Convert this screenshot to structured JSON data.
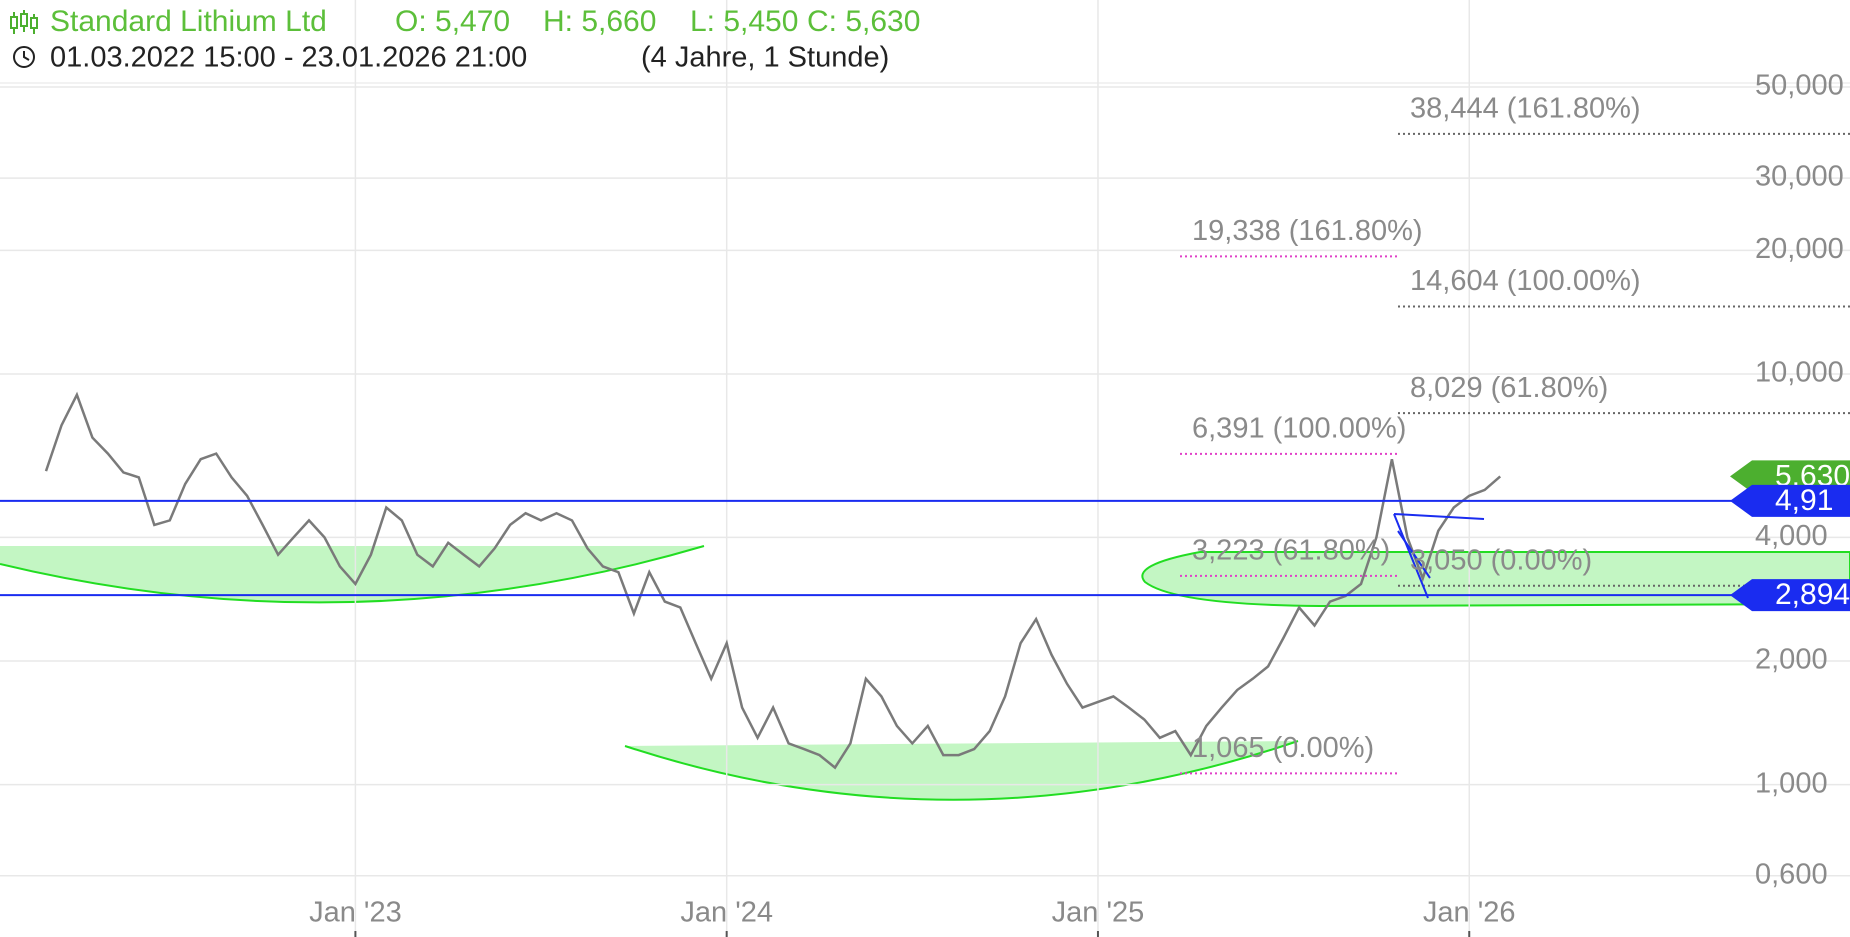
{
  "chart_data": {
    "type": "line",
    "title": "Standard Lithium Ltd",
    "ohlc_labels": [
      "O: 5,470",
      "H: 5,660",
      "L: 5,450",
      "C: 5,630"
    ],
    "date_range": "01.03.2022 15:00 - 23.01.2026 21:00",
    "period": "(4 Jahre, 1 Stunde)",
    "log_scale": true,
    "grid": true,
    "color": "#7a7a7a",
    "categories": [
      null,
      null,
      null,
      null,
      null,
      null,
      null,
      null,
      null,
      null,
      null,
      null,
      null,
      null,
      null,
      null,
      null,
      null,
      null,
      null,
      "Jan '23",
      null,
      null,
      null,
      null,
      null,
      null,
      null,
      null,
      null,
      null,
      null,
      null,
      null,
      null,
      null,
      null,
      null,
      null,
      null,
      null,
      null,
      null,
      null,
      "Jan '24",
      null,
      null,
      null,
      null,
      null,
      null,
      null,
      null,
      null,
      null,
      null,
      null,
      null,
      null,
      null,
      null,
      null,
      null,
      null,
      null,
      null,
      null,
      null,
      "Jan '25",
      null,
      null,
      null,
      null,
      null,
      null,
      null,
      null,
      null,
      null,
      null,
      null,
      null,
      null,
      null,
      null,
      null,
      null,
      null,
      null,
      null,
      null,
      null,
      "Jan '26",
      null,
      null
    ],
    "values": [
      5.8,
      7.5,
      8.9,
      7.0,
      6.4,
      5.76,
      5.6,
      4.29,
      4.4,
      5.4,
      6.2,
      6.4,
      5.6,
      5.05,
      4.29,
      3.63,
      4.0,
      4.4,
      4.0,
      3.4,
      3.08,
      3.63,
      4.73,
      4.4,
      3.63,
      3.4,
      3.88,
      3.63,
      3.4,
      3.76,
      4.29,
      4.58,
      4.4,
      4.58,
      4.4,
      3.76,
      3.4,
      3.29,
      2.61,
      3.29,
      2.79,
      2.7,
      2.21,
      1.81,
      2.21,
      1.54,
      1.3,
      1.54,
      1.26,
      1.22,
      1.18,
      1.1,
      1.26,
      1.81,
      1.64,
      1.39,
      1.26,
      1.39,
      1.18,
      1.18,
      1.22,
      1.35,
      1.64,
      2.21,
      2.53,
      2.07,
      1.76,
      1.54,
      1.59,
      1.64,
      1.54,
      1.44,
      1.3,
      1.35,
      1.18,
      1.39,
      1.54,
      1.7,
      1.81,
      1.94,
      2.28,
      2.7,
      2.44,
      2.79,
      2.88,
      3.08,
      4.0,
      6.2,
      4.0,
      3.18,
      4.15,
      4.73,
      5.05,
      5.22,
      5.63
    ],
    "ylim": [
      0.44,
      52
    ],
    "yticks": [
      {
        "value": 0.6,
        "label": "0,600"
      },
      {
        "value": 1,
        "label": "1,000"
      },
      {
        "value": 2,
        "label": "2,000"
      },
      {
        "value": 4,
        "label": "4,000"
      },
      {
        "value": 10,
        "label": "10,000"
      },
      {
        "value": 20,
        "label": "20,000"
      },
      {
        "value": 30,
        "label": "30,000"
      },
      {
        "value": 50,
        "label": "50,000"
      }
    ],
    "fib_left": [
      {
        "value": 19.338,
        "label": "19,338 (161.80%)"
      },
      {
        "value": 6.391,
        "label": "6,391 (100.00%)"
      },
      {
        "value": 3.223,
        "label": "3,223 (61.80%)"
      },
      {
        "value": 1.065,
        "label": "1,065 (0.00%)"
      }
    ],
    "fib_left_color": "#e040c8",
    "fib_right": [
      {
        "value": 38.444,
        "label": "38,444 (161.80%)"
      },
      {
        "value": 14.604,
        "label": "14,604 (100.00%)"
      },
      {
        "value": 8.029,
        "label": "8,029 (61.80%)"
      },
      {
        "value": 3.05,
        "label": "3,050 (0.00%)"
      }
    ],
    "fib_right_color": "#666666",
    "price_labels": [
      {
        "value": 5.63,
        "label": "5,630",
        "color": "#4caf2f",
        "line": false
      },
      {
        "value": 4.91,
        "label": "4,91",
        "color": "#1a2cf0",
        "line": true
      },
      {
        "value": 2.894,
        "label": "2,894",
        "color": "#1a2cf0",
        "line": true
      }
    ]
  }
}
